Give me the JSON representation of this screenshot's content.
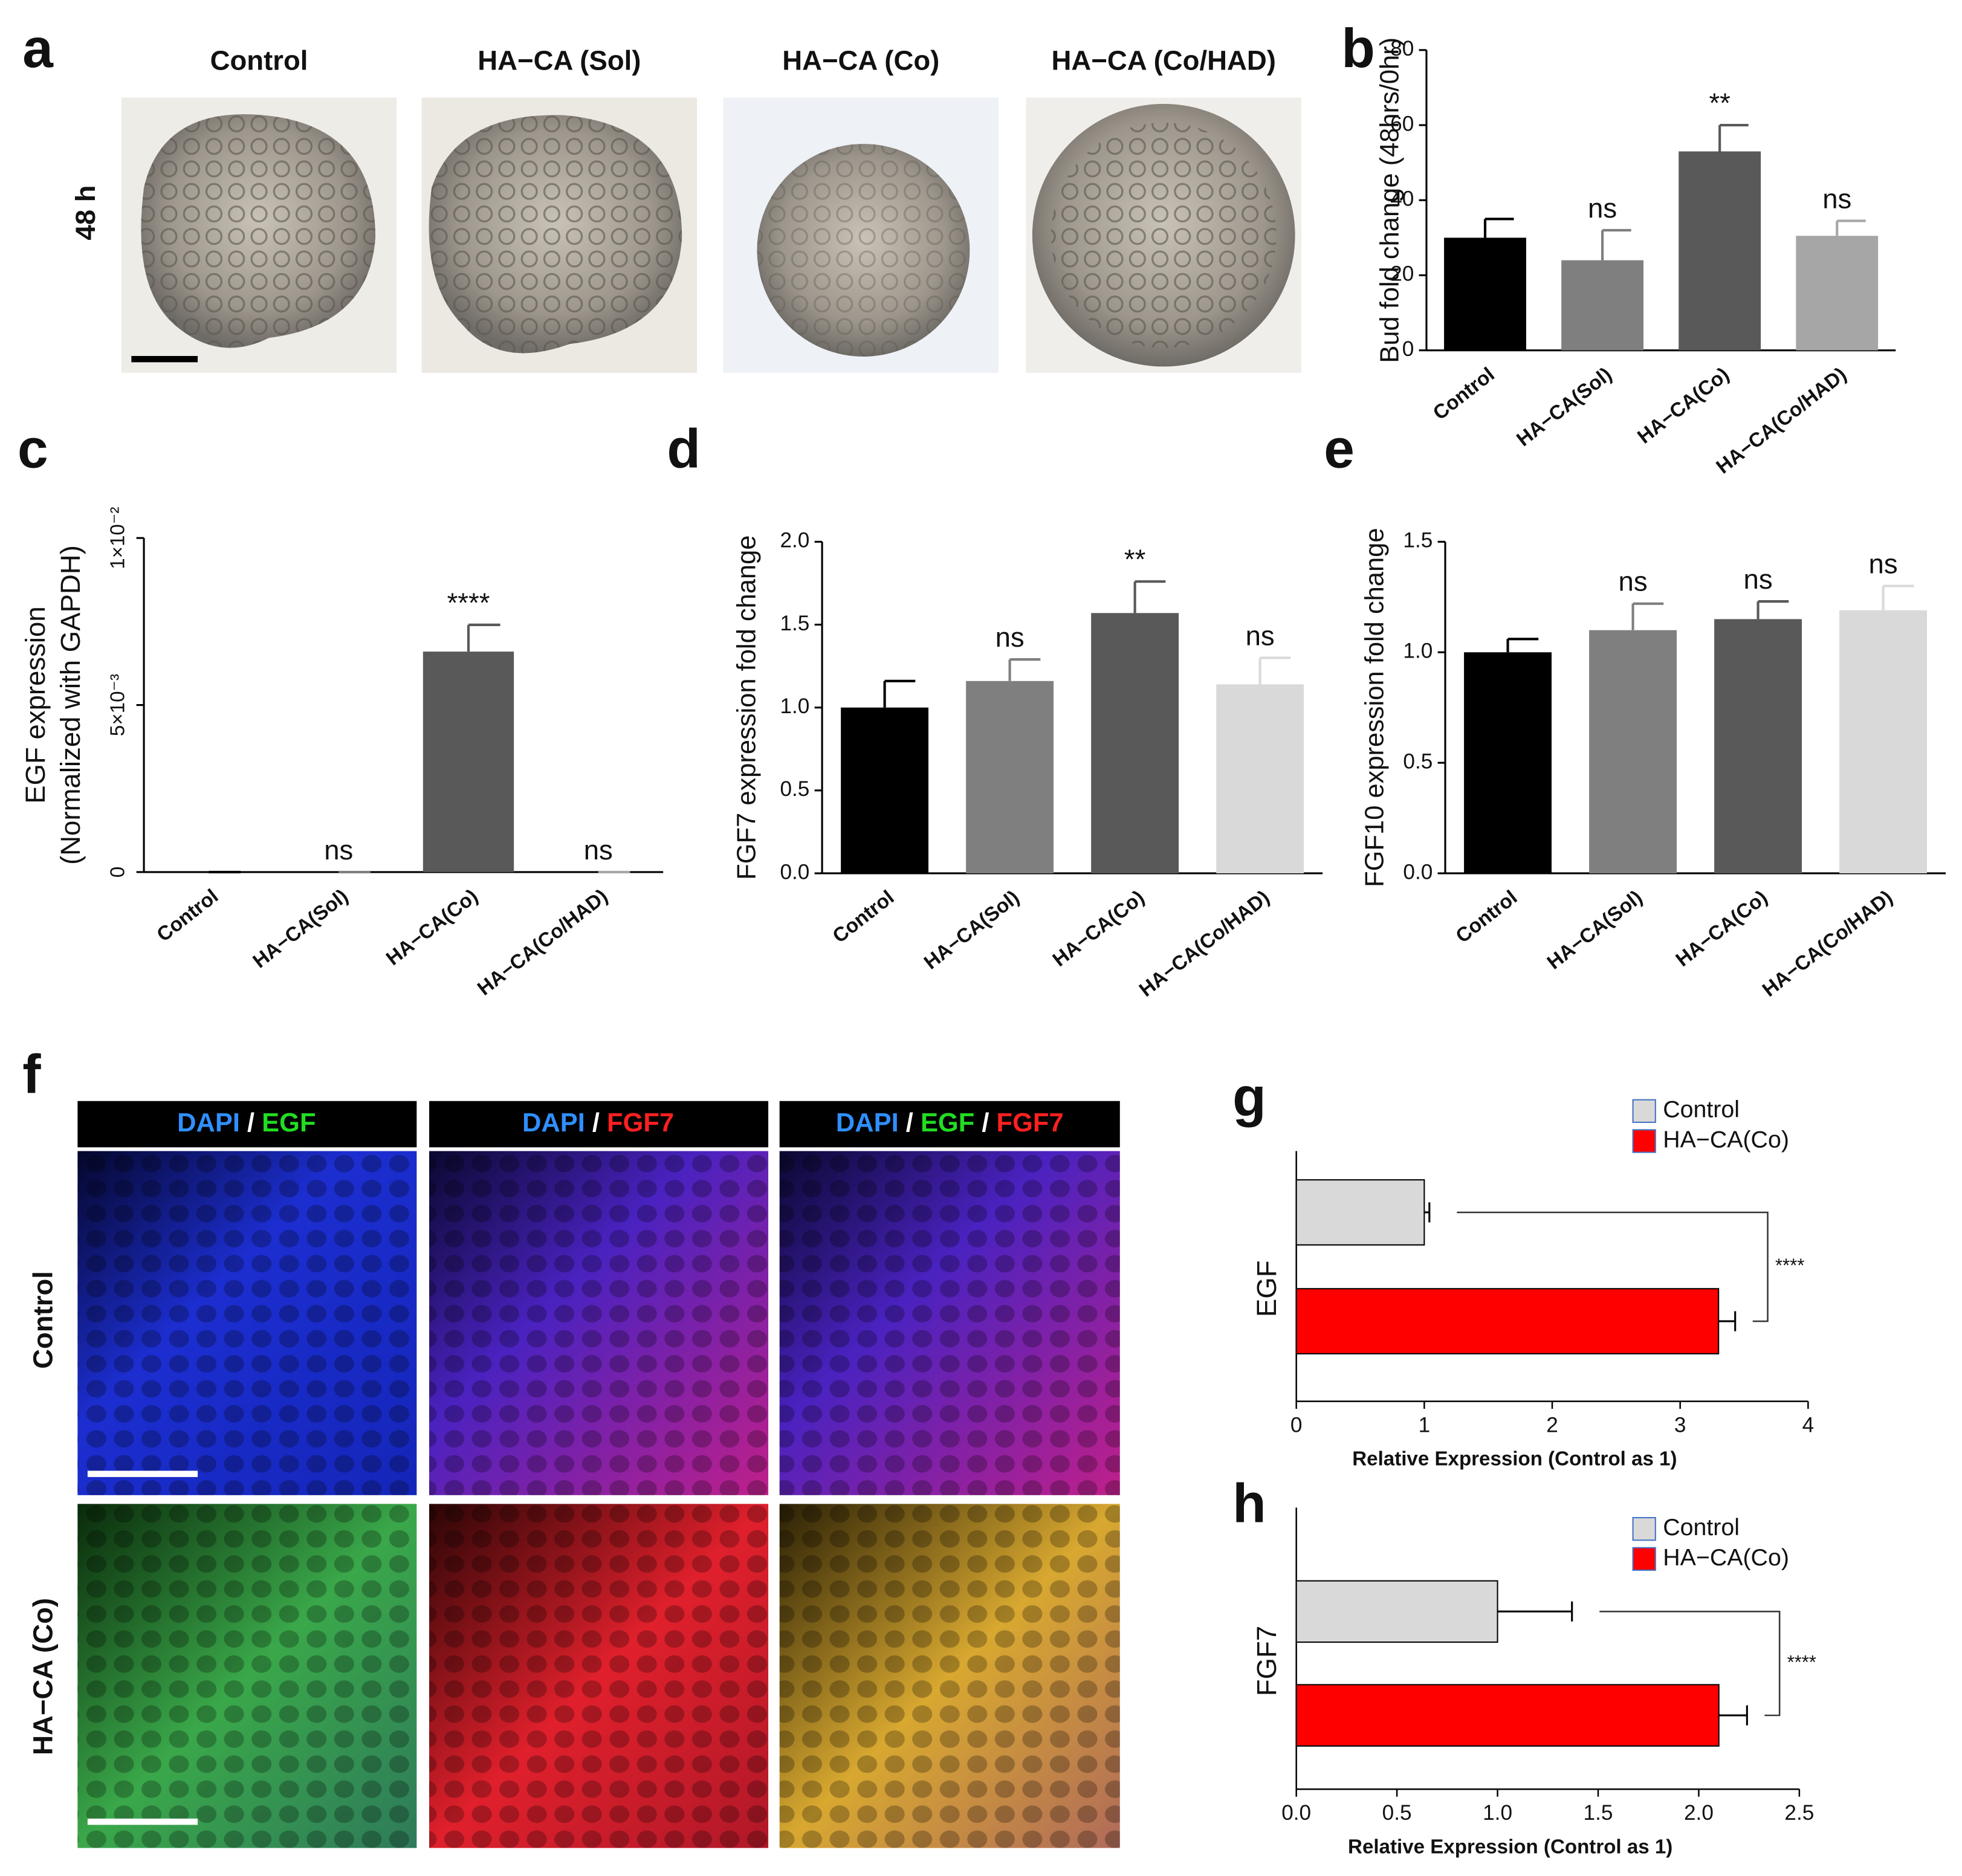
{
  "figure": {
    "panel_a": {
      "label": "a",
      "columns": [
        "Control",
        "HA−CA (Sol)",
        "HA−CA (Co)",
        "HA−CA (Co/HAD)"
      ],
      "row": "48 h"
    },
    "panel_f": {
      "label": "f",
      "headers": [
        [
          {
            "text": "DAPI",
            "color": "#2f8fff"
          },
          {
            "text": " / ",
            "color": "#ffffff"
          },
          {
            "text": "EGF",
            "color": "#22dd22"
          }
        ],
        [
          {
            "text": "DAPI",
            "color": "#2f8fff"
          },
          {
            "text": " / ",
            "color": "#ffffff"
          },
          {
            "text": "FGF7",
            "color": "#ff2020"
          }
        ],
        [
          {
            "text": "DAPI",
            "color": "#2f8fff"
          },
          {
            "text": " / ",
            "color": "#ffffff"
          },
          {
            "text": "EGF",
            "color": "#22dd22"
          },
          {
            "text": " / ",
            "color": "#ffffff"
          },
          {
            "text": "FGF7",
            "color": "#ff2020"
          }
        ]
      ],
      "rows": [
        "Control",
        "HA−CA (Co)"
      ]
    }
  },
  "chart_data": [
    {
      "type": "bar",
      "panel_label": "b",
      "ylabel": "Bud fold change (48hrs/0hr)",
      "categories": [
        "Control",
        "HA−CA(Sol)",
        "HA−CA(Co)",
        "HA−CA(Co/HAD)"
      ],
      "values": [
        30,
        24,
        53,
        30.5
      ],
      "errors": [
        5,
        8,
        7,
        4
      ],
      "colors": [
        "#000000",
        "#7f7f7f",
        "#595959",
        "#a6a6a6"
      ],
      "annotations": [
        null,
        "ns",
        "**",
        "ns"
      ],
      "ylim": [
        0,
        80
      ],
      "yticks": [
        0,
        20,
        40,
        60,
        80
      ]
    },
    {
      "type": "bar",
      "panel_label": "c",
      "ylabel": [
        "EGF expression",
        "(Normalized with GAPDH)"
      ],
      "categories": [
        "Control",
        "HA−CA(Sol)",
        "HA−CA(Co)",
        "HA−CA(Co/HAD)"
      ],
      "values": [
        0,
        0,
        0.0066,
        0
      ],
      "errors": [
        0,
        0,
        0.0008,
        0
      ],
      "colors": [
        "#000000",
        "#7f7f7f",
        "#595959",
        "#a6a6a6"
      ],
      "annotations": [
        null,
        "ns",
        "****",
        "ns"
      ],
      "ylim": [
        0,
        0.01
      ],
      "yticks": [
        0,
        {
          "value": 0.005,
          "label": "5×10⁻³"
        },
        {
          "value": 0.01,
          "label": "1×10⁻²"
        }
      ]
    },
    {
      "type": "bar",
      "panel_label": "d",
      "ylabel": "FGF7 expression fold change",
      "categories": [
        "Control",
        "HA−CA(Sol)",
        "HA−CA(Co)",
        "HA−CA(Co/HAD)"
      ],
      "values": [
        1.0,
        1.16,
        1.57,
        1.14
      ],
      "errors": [
        0.16,
        0.13,
        0.19,
        0.16
      ],
      "colors": [
        "#000000",
        "#7f7f7f",
        "#595959",
        "#d9d9d9"
      ],
      "annotations": [
        null,
        "ns",
        "**",
        "ns"
      ],
      "ylim": [
        0,
        2
      ],
      "yticks": [
        {
          "value": 0,
          "label": "0.0"
        },
        {
          "value": 0.5,
          "label": "0.5"
        },
        {
          "value": 1,
          "label": "1.0"
        },
        {
          "value": 1.5,
          "label": "1.5"
        },
        {
          "value": 2,
          "label": "2.0"
        }
      ]
    },
    {
      "type": "bar",
      "panel_label": "e",
      "ylabel": "FGF10 expression fold change",
      "categories": [
        "Control",
        "HA−CA(Sol)",
        "HA−CA(Co)",
        "HA−CA(Co/HAD)"
      ],
      "values": [
        1.0,
        1.1,
        1.15,
        1.19
      ],
      "errors": [
        0.06,
        0.12,
        0.08,
        0.11
      ],
      "colors": [
        "#000000",
        "#7f7f7f",
        "#595959",
        "#d9d9d9"
      ],
      "annotations": [
        null,
        "ns",
        "ns",
        "ns"
      ],
      "ylim": [
        0,
        1.5
      ],
      "yticks": [
        {
          "value": 0,
          "label": "0.0"
        },
        {
          "value": 0.5,
          "label": "0.5"
        },
        {
          "value": 1,
          "label": "1.0"
        },
        {
          "value": 1.5,
          "label": "1.5"
        }
      ]
    },
    {
      "type": "hbar",
      "panel_label": "g",
      "ylabel": "EGF",
      "xlabel": "Relative Expression (Control as 1)",
      "series": [
        {
          "name": "Control",
          "color": "#d9d9d9",
          "values": [
            1.0
          ],
          "errors": [
            0.04
          ]
        },
        {
          "name": "HA−CA(Co)",
          "color": "#ff0000",
          "values": [
            3.3
          ],
          "errors": [
            0.13
          ]
        }
      ],
      "significance": "****",
      "xlim": [
        0,
        4
      ],
      "xticks": [
        0,
        1,
        2,
        3,
        4
      ]
    },
    {
      "type": "hbar",
      "panel_label": "h",
      "ylabel": "FGF7",
      "xlabel": "Relative Expression (Control as 1)",
      "series": [
        {
          "name": "Control",
          "color": "#d9d9d9",
          "values": [
            1.0
          ],
          "errors": [
            0.37
          ]
        },
        {
          "name": "HA−CA(Co)",
          "color": "#ff0000",
          "values": [
            2.1
          ],
          "errors": [
            0.14
          ]
        }
      ],
      "significance": "****",
      "xlim": [
        0,
        2.5
      ],
      "xticks": [
        {
          "value": 0,
          "label": "0.0"
        },
        {
          "value": 0.5,
          "label": "0.5"
        },
        {
          "value": 1,
          "label": "1.0"
        },
        {
          "value": 1.5,
          "label": "1.5"
        },
        {
          "value": 2,
          "label": "2.0"
        },
        {
          "value": 2.5,
          "label": "2.5"
        }
      ]
    }
  ]
}
